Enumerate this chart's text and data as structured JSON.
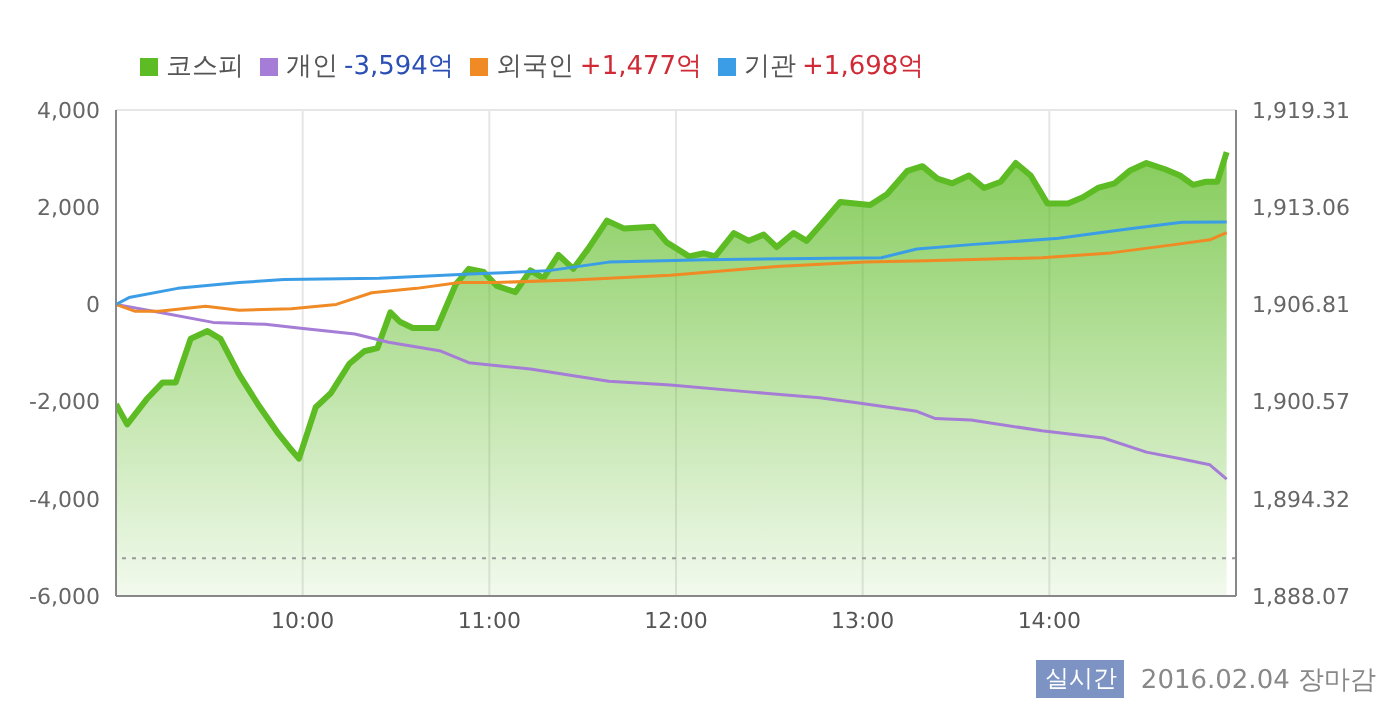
{
  "chart_data": {
    "type": "line",
    "legend": "top left",
    "grid": true,
    "marker": "none",
    "xlim": [
      9,
      15
    ],
    "xticks": [
      {
        "value": 10,
        "label": "10:00"
      },
      {
        "value": 11,
        "label": "11:00"
      },
      {
        "value": 12,
        "label": "12:00"
      },
      {
        "value": 13,
        "label": "13:00"
      },
      {
        "value": 14,
        "label": "14:00"
      }
    ],
    "ylim": [
      -6000,
      4000
    ],
    "yticks": [
      {
        "value": -6000,
        "label": "-6,000"
      },
      {
        "value": -4000,
        "label": "-4,000"
      },
      {
        "value": -2000,
        "label": "-2,000"
      },
      0,
      {
        "value": 2000,
        "label": "2,000"
      },
      {
        "value": 4000,
        "label": "4,000"
      }
    ],
    "y2lim": [
      1888.07,
      1919.31
    ],
    "y2ticks": [
      {
        "value": 1888.07,
        "label": "1,888.07"
      },
      {
        "value": 1894.32,
        "label": "1,894.32"
      },
      {
        "value": 1900.57,
        "label": "1,900.57"
      },
      {
        "value": 1906.81,
        "label": "1,906.81"
      },
      {
        "value": 1913.06,
        "label": "1,913.06"
      },
      {
        "value": 1919.31,
        "label": "1,919.31"
      }
    ],
    "ref_lines": [
      {
        "axis": "y2",
        "value": 1890.5,
        "color": "#999999",
        "line_style": "dotted"
      }
    ],
    "annotations": [
      "실시간",
      "2016.02.04 장마감"
    ],
    "series": [
      {
        "name": "코스피",
        "type": "area",
        "axis": "y2",
        "color": "#5dbb24",
        "x": [
          9.0,
          9.06,
          9.17,
          9.25,
          9.32,
          9.4,
          9.49,
          9.56,
          9.66,
          9.76,
          9.87,
          9.93,
          9.98,
          10.07,
          10.15,
          10.25,
          10.33,
          10.4,
          10.47,
          10.52,
          10.59,
          10.72,
          10.82,
          10.89,
          10.97,
          11.04,
          11.14,
          11.22,
          11.29,
          11.37,
          11.45,
          11.53,
          11.63,
          11.72,
          11.88,
          11.95,
          12.07,
          12.15,
          12.21,
          12.31,
          12.39,
          12.47,
          12.54,
          12.63,
          12.7,
          12.78,
          12.88,
          13.04,
          13.13,
          13.24,
          13.32,
          13.4,
          13.48,
          13.57,
          13.65,
          13.74,
          13.82,
          13.9,
          13.99,
          14.1,
          14.18,
          14.26,
          14.35,
          14.43,
          14.52,
          14.62,
          14.7,
          14.77,
          14.84,
          14.9,
          14.95
        ],
        "values": [
          1900.4,
          1899.1,
          1900.8,
          1901.8,
          1901.8,
          1904.6,
          1905.1,
          1904.6,
          1902.3,
          1900.4,
          1898.5,
          1897.6,
          1896.9,
          1900.2,
          1901.1,
          1903.0,
          1903.8,
          1904.0,
          1906.3,
          1905.7,
          1905.3,
          1905.3,
          1908.1,
          1909.1,
          1908.9,
          1908.0,
          1907.6,
          1909.0,
          1908.5,
          1910.0,
          1909.1,
          1910.4,
          1912.2,
          1911.7,
          1911.8,
          1910.8,
          1909.9,
          1910.1,
          1909.9,
          1911.4,
          1910.9,
          1911.3,
          1910.5,
          1911.4,
          1910.9,
          1912.0,
          1913.4,
          1913.2,
          1913.9,
          1915.4,
          1915.7,
          1914.9,
          1914.6,
          1915.1,
          1914.3,
          1914.7,
          1915.9,
          1915.1,
          1913.3,
          1913.3,
          1913.7,
          1914.3,
          1914.6,
          1915.4,
          1915.9,
          1915.5,
          1915.1,
          1914.5,
          1914.7,
          1914.7,
          1916.6
        ]
      },
      {
        "name": "개인 -3,594억",
        "color": "#a57dd6",
        "x": [
          9.0,
          9.23,
          9.52,
          9.8,
          9.99,
          10.28,
          10.46,
          10.74,
          10.89,
          11.22,
          11.64,
          11.97,
          12.39,
          12.77,
          12.96,
          13.29,
          13.39,
          13.58,
          13.96,
          14.29,
          14.52,
          14.71,
          14.86,
          14.95
        ],
        "values": [
          0,
          -160,
          -370,
          -410,
          -490,
          -610,
          -780,
          -960,
          -1200,
          -1330,
          -1580,
          -1660,
          -1800,
          -1920,
          -2020,
          -2200,
          -2350,
          -2380,
          -2600,
          -2750,
          -3040,
          -3180,
          -3300,
          -3594
        ]
      },
      {
        "name": "외국인 +1,477억",
        "color": "#f08a24",
        "x": [
          9.0,
          9.1,
          9.23,
          9.48,
          9.66,
          9.94,
          10.18,
          10.37,
          10.61,
          10.84,
          11.03,
          11.45,
          11.97,
          12.54,
          13.01,
          13.34,
          13.96,
          14.33,
          14.67,
          14.86,
          14.95
        ],
        "values": [
          0,
          -140,
          -140,
          -40,
          -120,
          -90,
          0,
          240,
          330,
          450,
          450,
          500,
          600,
          780,
          870,
          900,
          960,
          1060,
          1230,
          1330,
          1477
        ]
      },
      {
        "name": "기관 +1,698억",
        "color": "#3b9de6",
        "x": [
          9.0,
          9.07,
          9.33,
          9.66,
          9.9,
          10.41,
          10.93,
          11.31,
          11.64,
          12.16,
          13.1,
          13.29,
          13.58,
          14.05,
          14.42,
          14.71,
          14.95
        ],
        "values": [
          0,
          140,
          330,
          450,
          510,
          540,
          630,
          690,
          870,
          920,
          960,
          1140,
          1230,
          1360,
          1550,
          1690,
          1698
        ]
      }
    ]
  }
}
